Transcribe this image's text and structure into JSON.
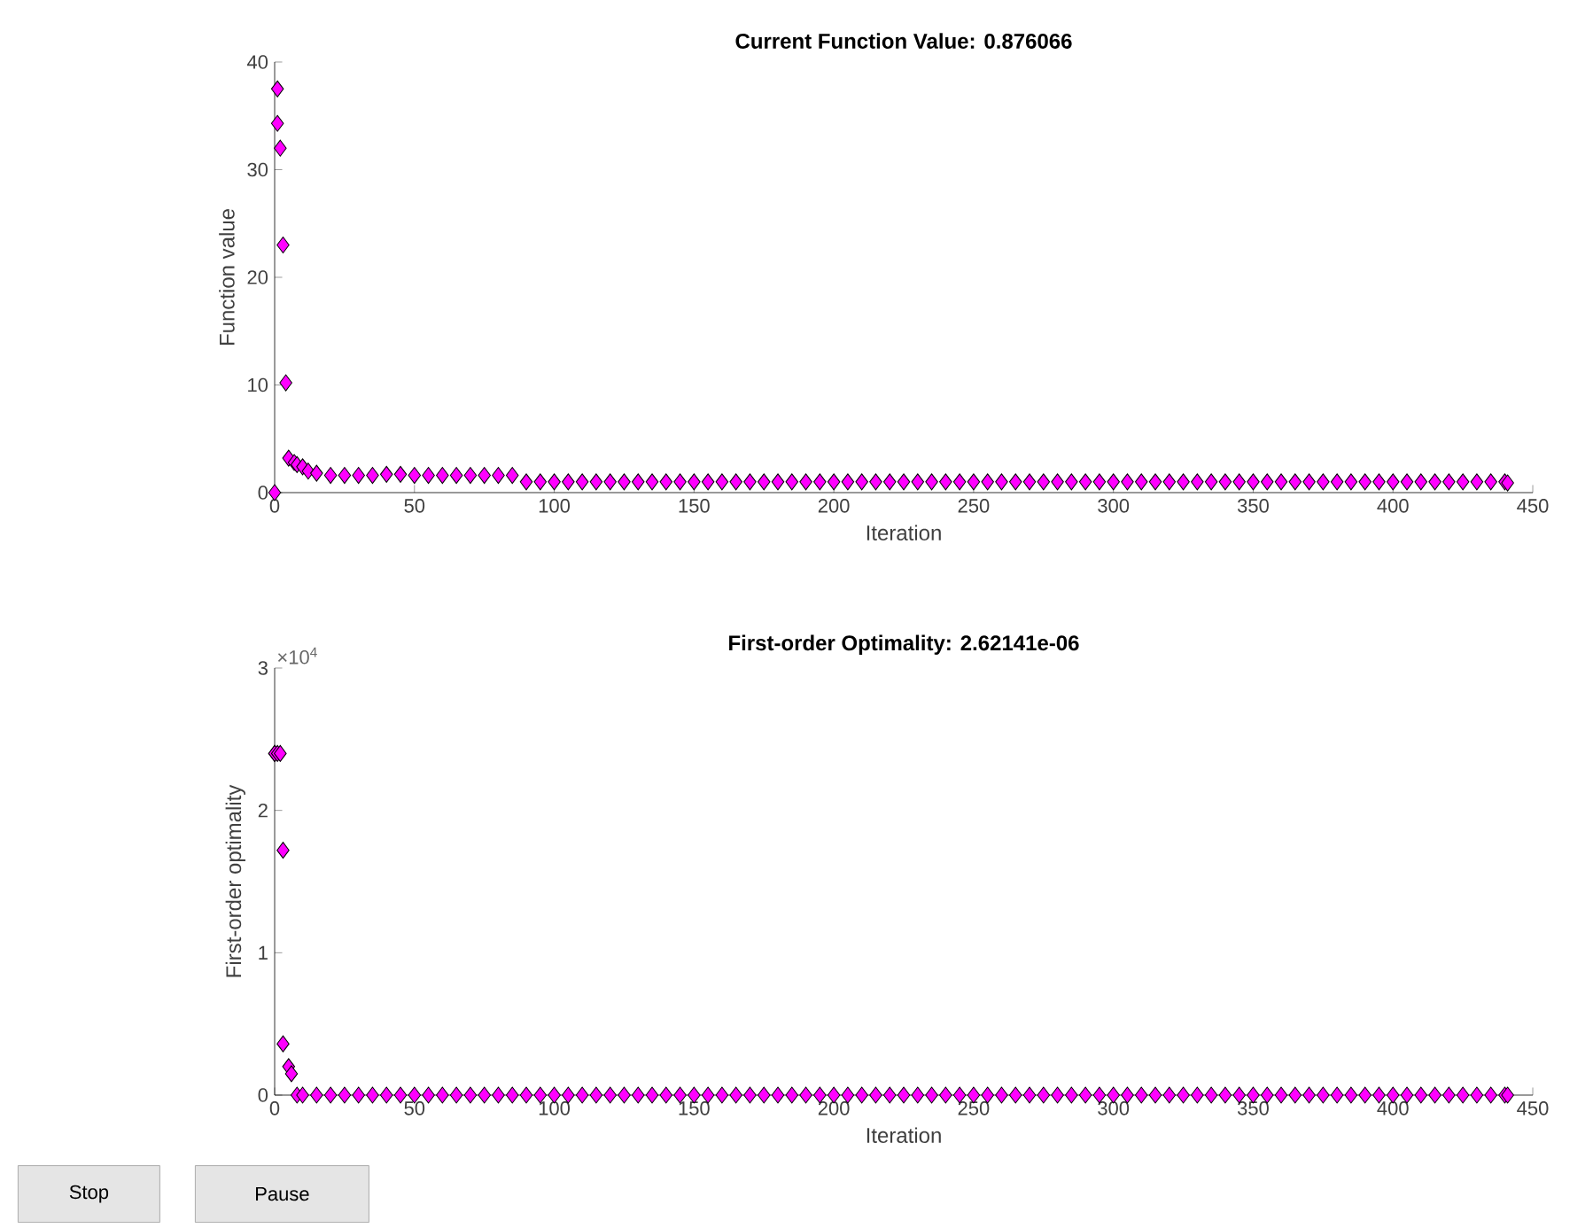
{
  "chart_data": [
    {
      "type": "scatter",
      "title": "Current Function Value: 0.876066",
      "xlabel": "Iteration",
      "ylabel": "Function value",
      "marker": "diamond",
      "xlim": [
        0,
        450
      ],
      "xticks": [
        0,
        50,
        100,
        150,
        200,
        250,
        300,
        350,
        400,
        450
      ],
      "ylim": [
        0,
        40
      ],
      "yticks": [
        0,
        10,
        20,
        30,
        40
      ],
      "series": [
        {
          "color": "#ff00ff",
          "x": [
            0,
            1,
            1,
            2,
            3,
            4,
            5,
            7,
            8,
            10,
            12,
            15,
            20,
            25,
            30,
            35,
            40,
            45,
            50,
            55,
            60,
            65,
            70,
            75,
            80,
            85,
            90,
            95,
            100,
            105,
            110,
            115,
            120,
            125,
            130,
            135,
            140,
            145,
            150,
            155,
            160,
            165,
            170,
            175,
            180,
            185,
            190,
            195,
            200,
            205,
            210,
            215,
            220,
            225,
            230,
            235,
            240,
            245,
            250,
            255,
            260,
            265,
            270,
            275,
            280,
            285,
            290,
            295,
            300,
            305,
            310,
            315,
            320,
            325,
            330,
            335,
            340,
            345,
            350,
            355,
            360,
            365,
            370,
            375,
            380,
            385,
            390,
            395,
            400,
            405,
            410,
            415,
            420,
            425,
            430,
            435,
            440,
            441
          ],
          "values": [
            0,
            37.5,
            34.3,
            32,
            23,
            10.2,
            3.2,
            2.8,
            2.6,
            2.4,
            2,
            1.8,
            1.6,
            1.6,
            1.6,
            1.6,
            1.7,
            1.7,
            1.6,
            1.6,
            1.6,
            1.6,
            1.6,
            1.6,
            1.6,
            1.6,
            1,
            1,
            1,
            1,
            1,
            1,
            1,
            1,
            1,
            1,
            1,
            1,
            1,
            1,
            1,
            1,
            1,
            1,
            1,
            1,
            1,
            1,
            1,
            1,
            1,
            1,
            1,
            1,
            1,
            1,
            1,
            1,
            1,
            1,
            1,
            1,
            1,
            1,
            1,
            1,
            1,
            1,
            1,
            1,
            1,
            1,
            1,
            1,
            1,
            1,
            1,
            1,
            1,
            1,
            1,
            1,
            1,
            1,
            1,
            1,
            1,
            1,
            1,
            1,
            1,
            1,
            1,
            1,
            1,
            1,
            1,
            0.9
          ]
        }
      ]
    },
    {
      "type": "scatter",
      "title": "First-order Optimality: 2.62141e-06",
      "xlabel": "Iteration",
      "ylabel": "First-order optimality",
      "marker": "diamond",
      "xlim": [
        0,
        450
      ],
      "xticks": [
        0,
        50,
        100,
        150,
        200,
        250,
        300,
        350,
        400,
        450
      ],
      "ylim": [
        0,
        3
      ],
      "yticks": [
        0,
        1,
        2,
        3
      ],
      "annotations": [
        "×10$^{4}$",
        "Stop",
        "Pause"
      ],
      "series": [
        {
          "color": "#ff00ff",
          "x": [
            0,
            0,
            1,
            2,
            3,
            3,
            5,
            6,
            8,
            10,
            15,
            20,
            25,
            30,
            35,
            40,
            45,
            50,
            55,
            60,
            65,
            70,
            75,
            80,
            85,
            90,
            95,
            100,
            105,
            110,
            115,
            120,
            125,
            130,
            135,
            140,
            145,
            150,
            155,
            160,
            165,
            170,
            175,
            180,
            185,
            190,
            195,
            200,
            205,
            210,
            215,
            220,
            225,
            230,
            235,
            240,
            245,
            250,
            255,
            260,
            265,
            270,
            275,
            280,
            285,
            290,
            295,
            300,
            305,
            310,
            315,
            320,
            325,
            330,
            335,
            340,
            345,
            350,
            355,
            360,
            365,
            370,
            375,
            380,
            385,
            390,
            395,
            400,
            405,
            410,
            415,
            420,
            425,
            430,
            435,
            440,
            441
          ],
          "values": [
            2.4,
            2.4,
            2.4,
            2.4,
            1.72,
            0.36,
            0.2,
            0.15,
            0,
            0,
            0,
            0,
            0,
            0,
            0,
            0,
            0,
            0,
            0,
            0,
            0,
            0,
            0,
            0,
            0,
            0,
            0,
            0,
            0,
            0,
            0,
            0,
            0,
            0,
            0,
            0,
            0,
            0,
            0,
            0,
            0,
            0,
            0,
            0,
            0,
            0,
            0,
            0,
            0,
            0,
            0,
            0,
            0,
            0,
            0,
            0,
            0,
            0,
            0,
            0,
            0,
            0,
            0,
            0,
            0,
            0,
            0,
            0,
            0,
            0,
            0,
            0,
            0,
            0,
            0,
            0,
            0,
            0,
            0,
            0,
            0,
            0,
            0,
            0,
            0,
            0,
            0,
            0,
            0,
            0,
            0,
            0,
            0,
            0,
            0,
            0,
            0
          ]
        }
      ]
    }
  ]
}
